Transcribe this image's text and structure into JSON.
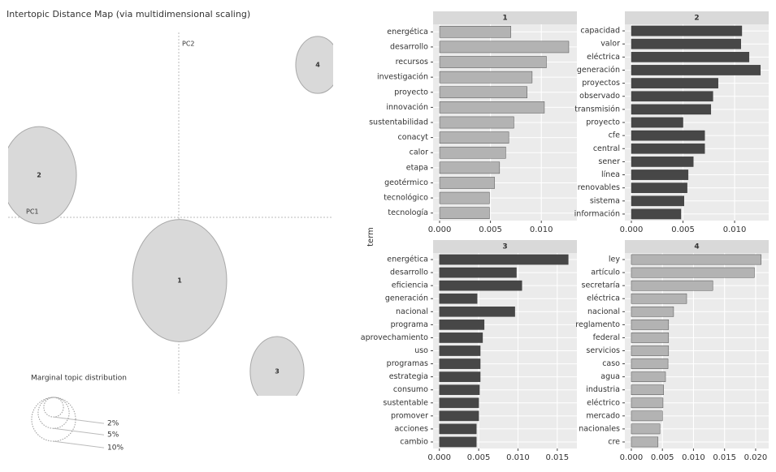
{
  "shared_axis_label": "term",
  "chart_data": [
    {
      "type": "bubble",
      "title": "Intertopic Distance Map (via multidimensional scaling)",
      "x_label": "PC1",
      "y_label": "PC2",
      "labels": [
        "1",
        "2",
        "3",
        "4"
      ],
      "x": [
        0.001,
        -0.172,
        0.121,
        0.171
      ],
      "y": [
        -0.078,
        0.052,
        -0.19,
        0.188
      ],
      "sizes": [
        46,
        29,
        15,
        10
      ],
      "xlim": [
        -0.21,
        0.188
      ],
      "ylim": [
        -0.217,
        0.228
      ],
      "color": "#d9d9d9",
      "legend": {
        "title": "Marginal topic distribution",
        "ticks": [
          {
            "value": 2,
            "label": "2%"
          },
          {
            "value": 5,
            "label": "5%"
          },
          {
            "value": 10,
            "label": "10%"
          }
        ]
      }
    },
    {
      "type": "bar",
      "title": "1",
      "color": "#b3b3b3",
      "categories": [
        "energética",
        "desarrollo",
        "recursos",
        "investigación",
        "proyecto",
        "innovación",
        "sustentabilidad",
        "conacyt",
        "calor",
        "etapa",
        "geotérmico",
        "tecnológico",
        "tecnología"
      ],
      "values": [
        0.007,
        0.0127,
        0.0105,
        0.0091,
        0.0086,
        0.0103,
        0.0073,
        0.0068,
        0.0065,
        0.0059,
        0.0054,
        0.0049,
        0.0049
      ],
      "xlim": [
        -0.00064,
        0.0135
      ],
      "xticks": [
        {
          "value": 0,
          "label": "0.000"
        },
        {
          "value": 0.005,
          "label": "0.005"
        },
        {
          "value": 0.01,
          "label": "0.010"
        }
      ]
    },
    {
      "type": "bar",
      "title": "2",
      "color": "#474747",
      "categories": [
        "capacidad",
        "valor",
        "eléctrica",
        "generación",
        "proyectos",
        "observado",
        "transmisión",
        "proyecto",
        "cfe",
        "central",
        "sener",
        "línea",
        "renovables",
        "sistema",
        "información"
      ],
      "values": [
        0.0107,
        0.0106,
        0.0114,
        0.0125,
        0.0084,
        0.0079,
        0.0077,
        0.005,
        0.0071,
        0.0071,
        0.006,
        0.0055,
        0.0054,
        0.0051,
        0.0048
      ],
      "xlim": [
        -0.00063,
        0.0133
      ],
      "xticks": [
        {
          "value": 0,
          "label": "0.000"
        },
        {
          "value": 0.005,
          "label": "0.005"
        },
        {
          "value": 0.01,
          "label": "0.010"
        }
      ]
    },
    {
      "type": "bar",
      "title": "3",
      "color": "#474747",
      "categories": [
        "energética",
        "desarrollo",
        "eficiencia",
        "generación",
        "nacional",
        "programa",
        "aprovechamiento",
        "uso",
        "programas",
        "estrategia",
        "consumo",
        "sustentable",
        "promover",
        "acciones",
        "cambio"
      ],
      "values": [
        0.0164,
        0.0098,
        0.0105,
        0.0048,
        0.0096,
        0.0057,
        0.0055,
        0.0052,
        0.0052,
        0.0052,
        0.0051,
        0.005,
        0.005,
        0.0047,
        0.0047
      ],
      "xlim": [
        -0.0008,
        0.0175
      ],
      "xticks": [
        {
          "value": 0,
          "label": "0.000"
        },
        {
          "value": 0.005,
          "label": "0.005"
        },
        {
          "value": 0.01,
          "label": "0.010"
        },
        {
          "value": 0.015,
          "label": "0.015"
        }
      ]
    },
    {
      "type": "bar",
      "title": "4",
      "color": "#b3b3b3",
      "categories": [
        "ley",
        "artículo",
        "secretaría",
        "eléctrica",
        "nacional",
        "reglamento",
        "federal",
        "servicios",
        "caso",
        "agua",
        "industria",
        "eléctrico",
        "mercado",
        "nacionales",
        "cre"
      ],
      "values": [
        0.0209,
        0.0198,
        0.0131,
        0.0089,
        0.0068,
        0.006,
        0.006,
        0.006,
        0.0059,
        0.0055,
        0.0052,
        0.0051,
        0.005,
        0.0046,
        0.0043
      ],
      "xlim": [
        -0.00104,
        0.0221
      ],
      "xticks": [
        {
          "value": 0,
          "label": "0.000"
        },
        {
          "value": 0.005,
          "label": "0.005"
        },
        {
          "value": 0.01,
          "label": "0.010"
        },
        {
          "value": 0.015,
          "label": "0.015"
        },
        {
          "value": 0.02,
          "label": "0.020"
        }
      ]
    }
  ]
}
